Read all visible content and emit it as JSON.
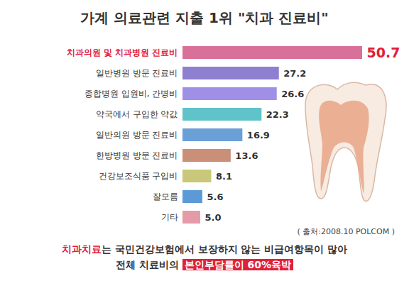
{
  "chart_data": {
    "type": "bar",
    "orientation": "horizontal",
    "title": "가계 의료관련 지출 1위 \"치과 진료비\"",
    "categories": [
      "치과의원 및 치과병원 진료비",
      "일반병원 방문 진료비",
      "종합병원 입원비, 간병비",
      "약국에서 구입한 약값",
      "일반의원 방문 진료비",
      "한방병원 방문 진료비",
      "건강보조식품 구입비",
      "잘모름",
      "기타"
    ],
    "values": [
      50.7,
      27.2,
      26.6,
      22.3,
      16.9,
      13.6,
      8.1,
      5.6,
      5.0
    ],
    "value_labels": [
      "50.7",
      "27.2",
      "26.6",
      "22.3",
      "16.9",
      "13.6",
      "8.1",
      "5.6",
      "5.0"
    ],
    "colors": [
      "#d9709a",
      "#8f7fd0",
      "#a08fe6",
      "#5fc3c9",
      "#6a9fd8",
      "#c98f78",
      "#c9c77a",
      "#5b9ad6",
      "#e59aa8"
    ],
    "data_labels": true,
    "tick_labels": "y",
    "source": "( 출처:2008.10 POLCOM )",
    "footnote": [
      [
        "치과치료",
        "는 국민건강보험에서 보장하지 않는 비급여항목이 많아"
      ],
      [
        "전체 치료비의 ",
        "본인부담률이 60%육박"
      ]
    ]
  }
}
